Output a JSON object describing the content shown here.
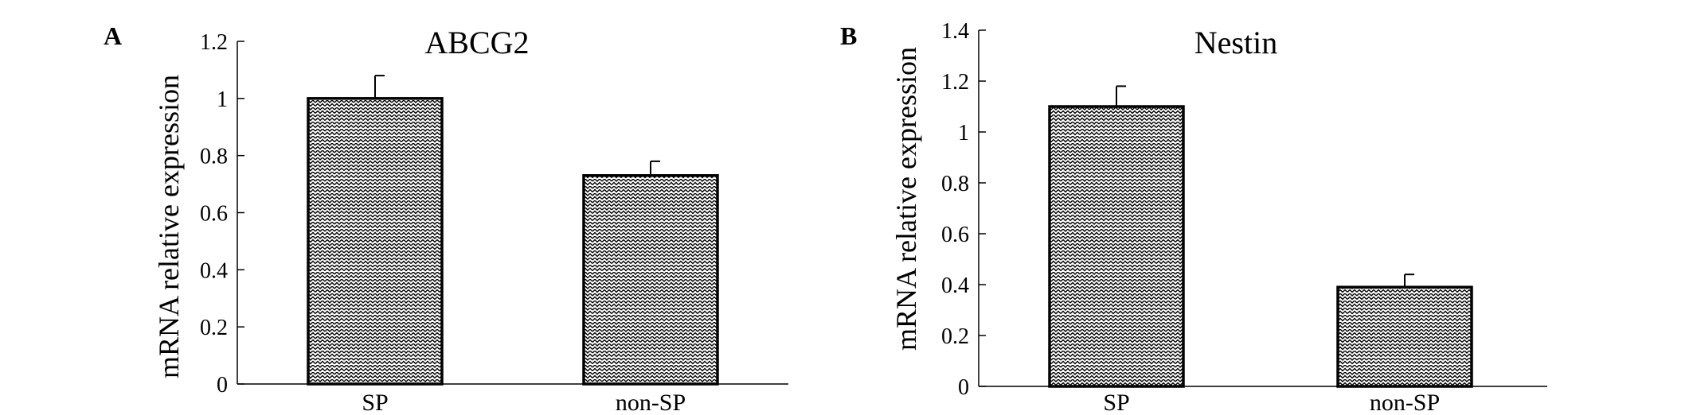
{
  "chart_data": [
    {
      "panel_label": "A",
      "type": "bar",
      "title": "ABCG2",
      "ylabel": "mRNA relative expression",
      "xlabel": "",
      "categories": [
        "SP",
        "non-SP"
      ],
      "values": [
        1.0,
        0.73
      ],
      "errors": [
        0.08,
        0.05
      ],
      "ylim": [
        0,
        1.2
      ],
      "yticks": [
        0,
        0.2,
        0.4,
        0.6,
        0.8,
        1,
        1.2
      ],
      "ytick_labels": [
        "0",
        "0.2",
        "0.4",
        "0.6",
        "0.8",
        "1",
        "1.2"
      ],
      "grid": false,
      "legend": "none"
    },
    {
      "panel_label": "B",
      "type": "bar",
      "title": "Nestin",
      "ylabel": "mRNA relative expression",
      "xlabel": "",
      "categories": [
        "SP",
        "non-SP"
      ],
      "values": [
        1.1,
        0.39
      ],
      "errors": [
        0.08,
        0.05
      ],
      "ylim": [
        0,
        1.4
      ],
      "yticks": [
        0,
        0.2,
        0.4,
        0.6,
        0.8,
        1,
        1.2,
        1.4
      ],
      "ytick_labels": [
        "0",
        "0.2",
        "0.4",
        "0.6",
        "0.8",
        "1",
        "1.2",
        "1.4"
      ],
      "grid": false,
      "legend": "none"
    }
  ],
  "colors": {
    "bar_fill": "#d9d9d9",
    "bar_pattern": "#000000",
    "axis": "#000000"
  }
}
